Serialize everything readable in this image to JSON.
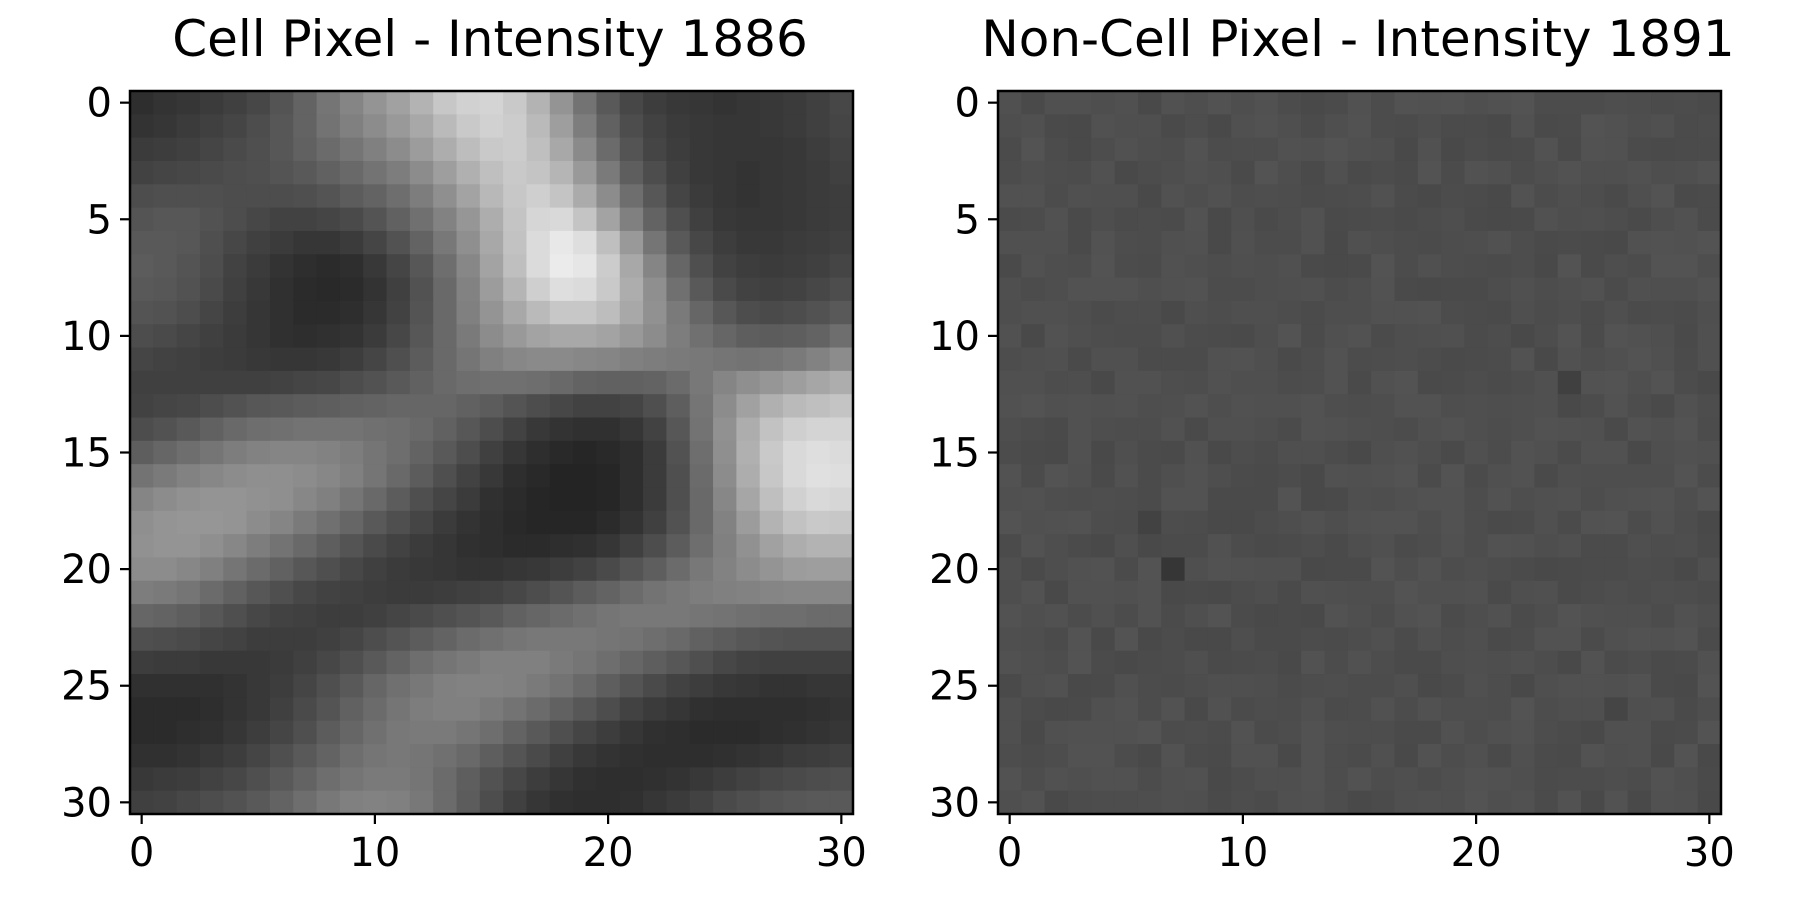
{
  "chart_data": [
    {
      "type": "heatmap",
      "title": "Cell Pixel - Intensity 1886",
      "colormap": "gray",
      "grid": false,
      "xlim": [
        -0.5,
        30.5
      ],
      "ylim": [
        30.5,
        -0.5
      ],
      "x_ticks": [
        0,
        10,
        20,
        30
      ],
      "y_ticks": [
        0,
        5,
        10,
        15,
        20,
        25,
        30
      ],
      "value_range": [
        0,
        1
      ],
      "matrix": [
        [
          0.18,
          0.2,
          0.21,
          0.23,
          0.25,
          0.28,
          0.33,
          0.39,
          0.46,
          0.52,
          0.58,
          0.63,
          0.7,
          0.78,
          0.82,
          0.83,
          0.79,
          0.7,
          0.58,
          0.45,
          0.35,
          0.28,
          0.24,
          0.22,
          0.21,
          0.2,
          0.21,
          0.22,
          0.23,
          0.25,
          0.28
        ],
        [
          0.2,
          0.21,
          0.23,
          0.25,
          0.27,
          0.3,
          0.34,
          0.39,
          0.45,
          0.5,
          0.55,
          0.6,
          0.66,
          0.73,
          0.79,
          0.82,
          0.8,
          0.73,
          0.62,
          0.49,
          0.38,
          0.3,
          0.26,
          0.23,
          0.22,
          0.21,
          0.21,
          0.22,
          0.23,
          0.25,
          0.27
        ],
        [
          0.23,
          0.24,
          0.25,
          0.27,
          0.29,
          0.31,
          0.34,
          0.38,
          0.42,
          0.46,
          0.5,
          0.55,
          0.61,
          0.68,
          0.74,
          0.79,
          0.8,
          0.75,
          0.66,
          0.54,
          0.42,
          0.33,
          0.27,
          0.24,
          0.22,
          0.21,
          0.21,
          0.21,
          0.22,
          0.24,
          0.26
        ],
        [
          0.26,
          0.27,
          0.28,
          0.29,
          0.3,
          0.31,
          0.33,
          0.35,
          0.38,
          0.41,
          0.45,
          0.49,
          0.55,
          0.62,
          0.69,
          0.75,
          0.79,
          0.77,
          0.71,
          0.6,
          0.48,
          0.37,
          0.3,
          0.25,
          0.22,
          0.21,
          0.2,
          0.21,
          0.22,
          0.23,
          0.25
        ],
        [
          0.3,
          0.31,
          0.31,
          0.31,
          0.3,
          0.3,
          0.3,
          0.31,
          0.33,
          0.36,
          0.39,
          0.43,
          0.49,
          0.56,
          0.64,
          0.72,
          0.78,
          0.81,
          0.77,
          0.67,
          0.55,
          0.43,
          0.34,
          0.27,
          0.23,
          0.21,
          0.2,
          0.21,
          0.22,
          0.23,
          0.24
        ],
        [
          0.33,
          0.34,
          0.34,
          0.32,
          0.3,
          0.28,
          0.26,
          0.26,
          0.27,
          0.29,
          0.33,
          0.38,
          0.44,
          0.51,
          0.59,
          0.68,
          0.77,
          0.84,
          0.85,
          0.77,
          0.64,
          0.5,
          0.39,
          0.31,
          0.25,
          0.22,
          0.21,
          0.21,
          0.22,
          0.23,
          0.24
        ],
        [
          0.35,
          0.35,
          0.34,
          0.31,
          0.28,
          0.25,
          0.23,
          0.21,
          0.21,
          0.23,
          0.27,
          0.32,
          0.39,
          0.47,
          0.56,
          0.66,
          0.76,
          0.86,
          0.91,
          0.87,
          0.75,
          0.6,
          0.46,
          0.35,
          0.28,
          0.24,
          0.22,
          0.22,
          0.23,
          0.24,
          0.25
        ],
        [
          0.36,
          0.35,
          0.33,
          0.3,
          0.26,
          0.23,
          0.2,
          0.18,
          0.17,
          0.18,
          0.22,
          0.27,
          0.34,
          0.43,
          0.53,
          0.64,
          0.75,
          0.86,
          0.92,
          0.9,
          0.8,
          0.66,
          0.52,
          0.4,
          0.31,
          0.26,
          0.24,
          0.23,
          0.24,
          0.25,
          0.27
        ],
        [
          0.35,
          0.34,
          0.32,
          0.29,
          0.25,
          0.22,
          0.19,
          0.17,
          0.16,
          0.17,
          0.2,
          0.25,
          0.32,
          0.41,
          0.51,
          0.61,
          0.71,
          0.81,
          0.87,
          0.86,
          0.79,
          0.68,
          0.56,
          0.44,
          0.35,
          0.29,
          0.26,
          0.25,
          0.26,
          0.28,
          0.3
        ],
        [
          0.33,
          0.32,
          0.3,
          0.27,
          0.24,
          0.21,
          0.19,
          0.17,
          0.17,
          0.18,
          0.21,
          0.26,
          0.33,
          0.41,
          0.5,
          0.58,
          0.66,
          0.73,
          0.78,
          0.78,
          0.74,
          0.66,
          0.57,
          0.48,
          0.4,
          0.34,
          0.3,
          0.29,
          0.3,
          0.32,
          0.35
        ],
        [
          0.3,
          0.29,
          0.27,
          0.25,
          0.23,
          0.21,
          0.19,
          0.18,
          0.19,
          0.2,
          0.23,
          0.28,
          0.34,
          0.41,
          0.48,
          0.55,
          0.6,
          0.64,
          0.66,
          0.66,
          0.64,
          0.6,
          0.55,
          0.49,
          0.44,
          0.4,
          0.37,
          0.36,
          0.37,
          0.39,
          0.43
        ],
        [
          0.27,
          0.26,
          0.25,
          0.24,
          0.23,
          0.22,
          0.21,
          0.21,
          0.22,
          0.24,
          0.27,
          0.31,
          0.36,
          0.41,
          0.46,
          0.5,
          0.53,
          0.54,
          0.54,
          0.53,
          0.52,
          0.5,
          0.49,
          0.48,
          0.47,
          0.46,
          0.45,
          0.46,
          0.48,
          0.51,
          0.55
        ],
        [
          0.25,
          0.25,
          0.25,
          0.25,
          0.25,
          0.25,
          0.26,
          0.27,
          0.28,
          0.3,
          0.32,
          0.35,
          0.38,
          0.41,
          0.43,
          0.44,
          0.44,
          0.43,
          0.41,
          0.39,
          0.38,
          0.38,
          0.39,
          0.42,
          0.47,
          0.52,
          0.56,
          0.59,
          0.62,
          0.65,
          0.68
        ],
        [
          0.26,
          0.27,
          0.28,
          0.3,
          0.32,
          0.34,
          0.35,
          0.36,
          0.37,
          0.38,
          0.39,
          0.4,
          0.4,
          0.4,
          0.38,
          0.36,
          0.33,
          0.3,
          0.28,
          0.26,
          0.26,
          0.27,
          0.31,
          0.37,
          0.46,
          0.55,
          0.63,
          0.69,
          0.73,
          0.75,
          0.77
        ],
        [
          0.3,
          0.32,
          0.35,
          0.38,
          0.41,
          0.43,
          0.44,
          0.45,
          0.45,
          0.45,
          0.44,
          0.43,
          0.41,
          0.38,
          0.34,
          0.3,
          0.26,
          0.22,
          0.2,
          0.19,
          0.19,
          0.21,
          0.26,
          0.34,
          0.45,
          0.57,
          0.68,
          0.76,
          0.81,
          0.83,
          0.83
        ],
        [
          0.37,
          0.4,
          0.43,
          0.46,
          0.49,
          0.51,
          0.52,
          0.52,
          0.51,
          0.49,
          0.46,
          0.43,
          0.39,
          0.35,
          0.3,
          0.25,
          0.21,
          0.18,
          0.16,
          0.15,
          0.16,
          0.18,
          0.23,
          0.32,
          0.43,
          0.56,
          0.69,
          0.79,
          0.85,
          0.87,
          0.86
        ],
        [
          0.45,
          0.48,
          0.51,
          0.53,
          0.55,
          0.56,
          0.56,
          0.55,
          0.53,
          0.5,
          0.46,
          0.41,
          0.36,
          0.31,
          0.26,
          0.22,
          0.18,
          0.16,
          0.14,
          0.14,
          0.15,
          0.18,
          0.23,
          0.31,
          0.42,
          0.55,
          0.68,
          0.78,
          0.85,
          0.88,
          0.87
        ],
        [
          0.52,
          0.55,
          0.57,
          0.58,
          0.58,
          0.57,
          0.56,
          0.53,
          0.5,
          0.46,
          0.41,
          0.36,
          0.31,
          0.27,
          0.23,
          0.19,
          0.17,
          0.15,
          0.14,
          0.14,
          0.15,
          0.18,
          0.23,
          0.31,
          0.41,
          0.53,
          0.65,
          0.75,
          0.82,
          0.85,
          0.84
        ],
        [
          0.56,
          0.58,
          0.59,
          0.59,
          0.58,
          0.55,
          0.52,
          0.48,
          0.44,
          0.4,
          0.35,
          0.31,
          0.27,
          0.23,
          0.2,
          0.18,
          0.16,
          0.15,
          0.15,
          0.15,
          0.17,
          0.2,
          0.25,
          0.32,
          0.41,
          0.51,
          0.61,
          0.7,
          0.76,
          0.79,
          0.78
        ],
        [
          0.57,
          0.58,
          0.58,
          0.56,
          0.53,
          0.49,
          0.45,
          0.41,
          0.37,
          0.33,
          0.29,
          0.26,
          0.23,
          0.21,
          0.19,
          0.18,
          0.17,
          0.17,
          0.18,
          0.19,
          0.21,
          0.25,
          0.3,
          0.36,
          0.43,
          0.5,
          0.57,
          0.63,
          0.68,
          0.7,
          0.7
        ],
        [
          0.55,
          0.55,
          0.53,
          0.5,
          0.46,
          0.42,
          0.38,
          0.34,
          0.31,
          0.28,
          0.25,
          0.23,
          0.22,
          0.21,
          0.2,
          0.2,
          0.21,
          0.22,
          0.24,
          0.26,
          0.29,
          0.33,
          0.37,
          0.42,
          0.47,
          0.51,
          0.55,
          0.58,
          0.61,
          0.62,
          0.62
        ],
        [
          0.49,
          0.48,
          0.46,
          0.42,
          0.38,
          0.34,
          0.31,
          0.28,
          0.26,
          0.25,
          0.24,
          0.23,
          0.23,
          0.24,
          0.25,
          0.26,
          0.28,
          0.3,
          0.33,
          0.36,
          0.39,
          0.42,
          0.45,
          0.47,
          0.49,
          0.5,
          0.51,
          0.52,
          0.53,
          0.53,
          0.53
        ],
        [
          0.4,
          0.39,
          0.37,
          0.34,
          0.31,
          0.28,
          0.26,
          0.25,
          0.24,
          0.24,
          0.25,
          0.27,
          0.29,
          0.31,
          0.33,
          0.35,
          0.38,
          0.4,
          0.42,
          0.44,
          0.46,
          0.47,
          0.47,
          0.47,
          0.46,
          0.45,
          0.44,
          0.43,
          0.43,
          0.42,
          0.42
        ],
        [
          0.31,
          0.3,
          0.29,
          0.27,
          0.26,
          0.24,
          0.24,
          0.24,
          0.25,
          0.27,
          0.3,
          0.33,
          0.36,
          0.39,
          0.42,
          0.44,
          0.46,
          0.47,
          0.47,
          0.47,
          0.46,
          0.45,
          0.43,
          0.41,
          0.38,
          0.36,
          0.34,
          0.33,
          0.32,
          0.32,
          0.32
        ],
        [
          0.24,
          0.23,
          0.23,
          0.22,
          0.22,
          0.22,
          0.23,
          0.25,
          0.28,
          0.31,
          0.35,
          0.39,
          0.43,
          0.46,
          0.48,
          0.5,
          0.5,
          0.5,
          0.48,
          0.46,
          0.43,
          0.4,
          0.37,
          0.34,
          0.31,
          0.28,
          0.26,
          0.25,
          0.25,
          0.25,
          0.25
        ],
        [
          0.19,
          0.19,
          0.19,
          0.19,
          0.2,
          0.22,
          0.24,
          0.27,
          0.31,
          0.35,
          0.4,
          0.44,
          0.47,
          0.5,
          0.51,
          0.51,
          0.5,
          0.48,
          0.45,
          0.41,
          0.37,
          0.33,
          0.29,
          0.26,
          0.24,
          0.22,
          0.21,
          0.2,
          0.2,
          0.21,
          0.21
        ],
        [
          0.17,
          0.17,
          0.17,
          0.18,
          0.2,
          0.22,
          0.25,
          0.29,
          0.33,
          0.38,
          0.42,
          0.46,
          0.49,
          0.5,
          0.5,
          0.48,
          0.45,
          0.42,
          0.38,
          0.34,
          0.3,
          0.26,
          0.23,
          0.21,
          0.19,
          0.18,
          0.18,
          0.18,
          0.18,
          0.19,
          0.2
        ],
        [
          0.17,
          0.17,
          0.18,
          0.19,
          0.21,
          0.24,
          0.27,
          0.31,
          0.36,
          0.4,
          0.44,
          0.47,
          0.48,
          0.48,
          0.46,
          0.43,
          0.39,
          0.35,
          0.31,
          0.27,
          0.24,
          0.21,
          0.19,
          0.18,
          0.17,
          0.17,
          0.17,
          0.18,
          0.19,
          0.2,
          0.21
        ],
        [
          0.19,
          0.19,
          0.2,
          0.22,
          0.24,
          0.27,
          0.31,
          0.35,
          0.39,
          0.43,
          0.46,
          0.47,
          0.46,
          0.44,
          0.41,
          0.37,
          0.33,
          0.29,
          0.25,
          0.22,
          0.2,
          0.19,
          0.18,
          0.18,
          0.18,
          0.19,
          0.2,
          0.21,
          0.23,
          0.24,
          0.25
        ],
        [
          0.22,
          0.23,
          0.24,
          0.26,
          0.28,
          0.31,
          0.35,
          0.39,
          0.43,
          0.46,
          0.48,
          0.48,
          0.46,
          0.42,
          0.37,
          0.32,
          0.28,
          0.24,
          0.21,
          0.19,
          0.18,
          0.18,
          0.19,
          0.2,
          0.22,
          0.24,
          0.26,
          0.28,
          0.29,
          0.3,
          0.31
        ],
        [
          0.25,
          0.26,
          0.28,
          0.3,
          0.32,
          0.35,
          0.39,
          0.43,
          0.47,
          0.5,
          0.51,
          0.5,
          0.47,
          0.42,
          0.36,
          0.3,
          0.25,
          0.21,
          0.19,
          0.18,
          0.18,
          0.19,
          0.21,
          0.23,
          0.26,
          0.29,
          0.31,
          0.33,
          0.34,
          0.35,
          0.35
        ]
      ]
    },
    {
      "type": "heatmap",
      "title": "Non-Cell Pixel - Intensity 1891",
      "colormap": "gray",
      "grid": false,
      "xlim": [
        -0.5,
        30.5
      ],
      "ylim": [
        30.5,
        -0.5
      ],
      "x_ticks": [
        0,
        10,
        20,
        30
      ],
      "y_ticks": [
        0,
        5,
        10,
        15,
        20,
        25,
        30
      ],
      "value_range": [
        0,
        1
      ],
      "base_level": 0.305,
      "noise_amplitude": 0.02,
      "matrix": [],
      "dark_spots": [
        {
          "row": 20,
          "col": 7,
          "value": 0.21
        },
        {
          "row": 12,
          "col": 24,
          "value": 0.25
        },
        {
          "row": 18,
          "col": 6,
          "value": 0.26
        },
        {
          "row": 26,
          "col": 26,
          "value": 0.27
        }
      ]
    }
  ]
}
